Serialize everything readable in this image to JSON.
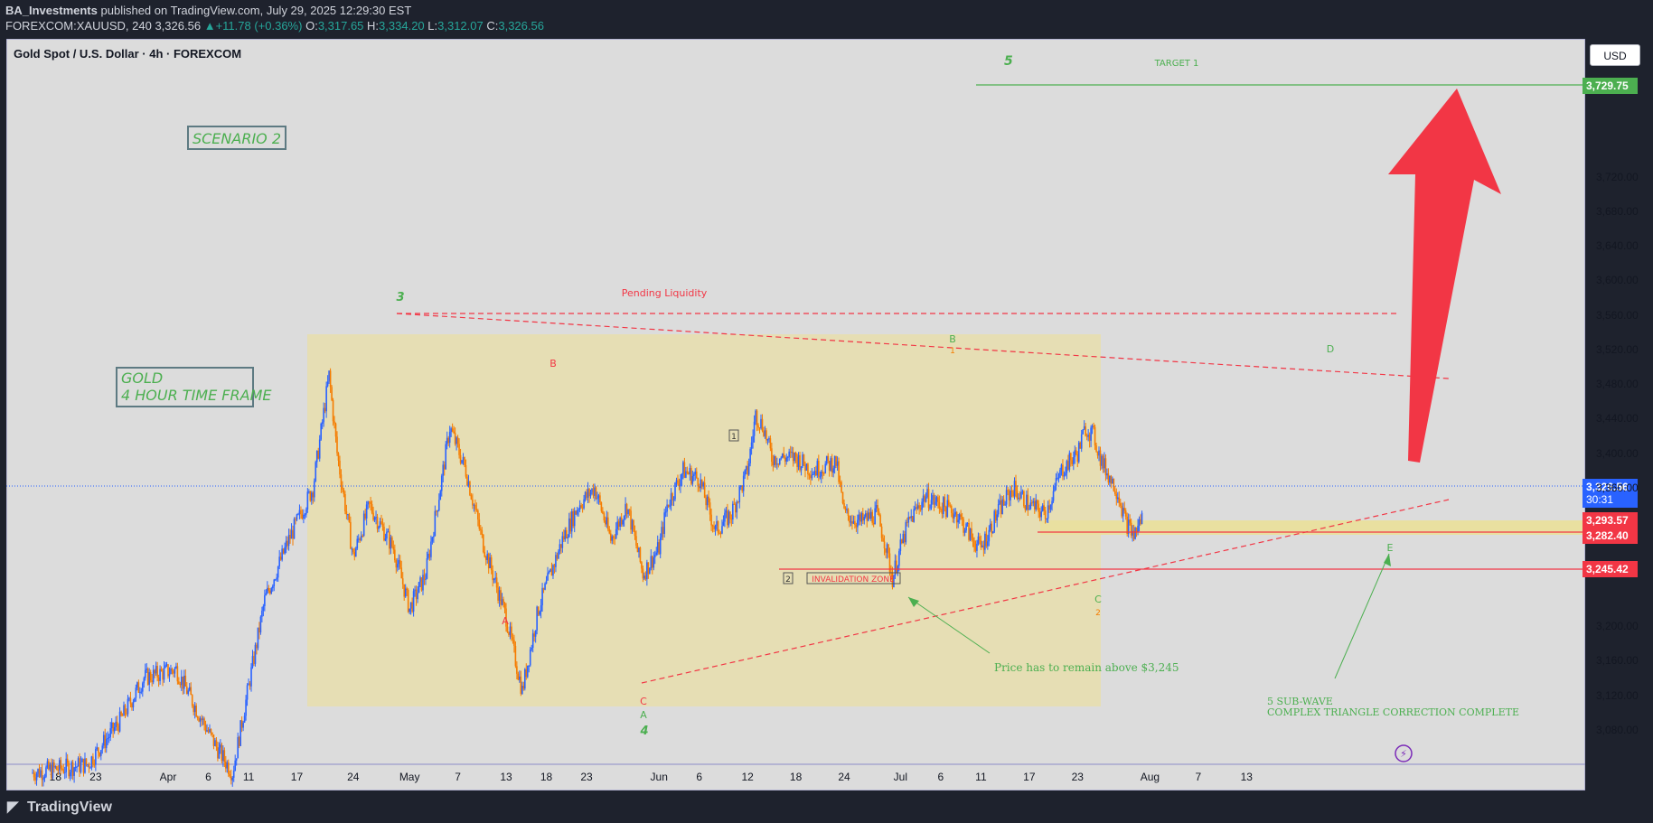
{
  "header": {
    "publisher": "BA_Investments",
    "published_text": "published on TradingView.com, July 29, 2025 12:29:30 EST",
    "symbol": "FOREXCOM:XAUUSD, 240",
    "last": "3,326.56",
    "change": "+11.78 (+0.36%)",
    "o_label": "O:",
    "o": "3,317.65",
    "h_label": "H:",
    "h": "3,334.20",
    "l_label": "L:",
    "l": "3,312.07",
    "c_label": "C:",
    "c": "3,326.56"
  },
  "chart_title": "Gold Spot / U.S. Dollar · 4h · FOREXCOM",
  "currency_button": "USD",
  "price_tags": {
    "target": "3,729.75",
    "current": "3,326.56",
    "countdown": "30:31",
    "level_a": "3,293.57",
    "level_b": "3,282.40",
    "level_c": "3,245.42"
  },
  "colors": {
    "bull": "#2962ff",
    "bear": "#f57c00",
    "green": "#4caf50",
    "red": "#f23645",
    "zone": "#e6deb4"
  },
  "annotations": {
    "scenario": "SCENARIO 2",
    "gold_line1": "GOLD",
    "gold_line2": "4 HOUR TIME FRAME",
    "target_wave": "5",
    "target_label": "TARGET 1",
    "pending_liquidity": "Pending Liquidity",
    "invalidation_zone": "INVALIDATION ZONE",
    "price_note": "Price has to remain above $3,245",
    "subwave_line1": "5 SUB-WAVE",
    "subwave_line2": "COMPLEX TRIANGLE CORRECTION COMPLETE",
    "wave_3": "3",
    "wave_4": "4",
    "wave_A_red": "A",
    "wave_B_red": "B",
    "wave_C_red": "C",
    "wave_A_green": "A",
    "wave_B_green": "B",
    "wave_C_green": "C",
    "wave_D": "D",
    "wave_E": "E",
    "box_1": "1",
    "box_2": "2",
    "small_1": "1",
    "small_2": "2"
  },
  "footer": {
    "logo": "TradingView"
  },
  "chart_data": {
    "type": "candlestick",
    "title": "Gold Spot / U.S. Dollar · 4h · FOREXCOM",
    "y_axis_ticks": [
      "3,720.00",
      "3,680.00",
      "3,640.00",
      "3,600.00",
      "3,560.00",
      "3,520.00",
      "3,480.00",
      "3,440.00",
      "3,400.00",
      "3,360.00",
      "3,200.00",
      "3,160.00",
      "3,120.00",
      "3,080.00"
    ],
    "y_tick_values": [
      3720,
      3680,
      3640,
      3600,
      3560,
      3520,
      3480,
      3440,
      3400,
      3360,
      3200,
      3160,
      3120,
      3080
    ],
    "x_axis_ticks": [
      {
        "label": "18",
        "day": -14
      },
      {
        "label": "23",
        "day": -9
      },
      {
        "label": "Apr",
        "day": 0
      },
      {
        "label": "6",
        "day": 5
      },
      {
        "label": "11",
        "day": 10
      },
      {
        "label": "17",
        "day": 16
      },
      {
        "label": "24",
        "day": 23
      },
      {
        "label": "May",
        "day": 30
      },
      {
        "label": "7",
        "day": 36
      },
      {
        "label": "13",
        "day": 42
      },
      {
        "label": "18",
        "day": 47
      },
      {
        "label": "23",
        "day": 52
      },
      {
        "label": "Jun",
        "day": 61
      },
      {
        "label": "6",
        "day": 66
      },
      {
        "label": "12",
        "day": 72
      },
      {
        "label": "18",
        "day": 78
      },
      {
        "label": "24",
        "day": 84
      },
      {
        "label": "Jul",
        "day": 91
      },
      {
        "label": "6",
        "day": 96
      },
      {
        "label": "11",
        "day": 101
      },
      {
        "label": "17",
        "day": 107
      },
      {
        "label": "23",
        "day": 113
      },
      {
        "label": "Aug",
        "day": 122
      },
      {
        "label": "7",
        "day": 128
      },
      {
        "label": "13",
        "day": 134
      }
    ],
    "price_path": [
      {
        "day": -17,
        "price": 3030
      },
      {
        "day": -10,
        "price": 3040
      },
      {
        "day": -6,
        "price": 3090
      },
      {
        "day": -3,
        "price": 3140
      },
      {
        "day": 1,
        "price": 3150
      },
      {
        "day": 4,
        "price": 3095
      },
      {
        "day": 6,
        "price": 3060
      },
      {
        "day": 8,
        "price": 3030
      },
      {
        "day": 10,
        "price": 3130
      },
      {
        "day": 12,
        "price": 3230
      },
      {
        "day": 15,
        "price": 3300
      },
      {
        "day": 18,
        "price": 3360
      },
      {
        "day": 20,
        "price": 3490
      },
      {
        "day": 21,
        "price": 3400
      },
      {
        "day": 23,
        "price": 3280
      },
      {
        "day": 25,
        "price": 3340
      },
      {
        "day": 28,
        "price": 3290
      },
      {
        "day": 30,
        "price": 3220
      },
      {
        "day": 32,
        "price": 3260
      },
      {
        "day": 34,
        "price": 3370
      },
      {
        "day": 35,
        "price": 3430
      },
      {
        "day": 37,
        "price": 3380
      },
      {
        "day": 39,
        "price": 3300
      },
      {
        "day": 41,
        "price": 3240
      },
      {
        "day": 42,
        "price": 3210
      },
      {
        "day": 44,
        "price": 3125
      },
      {
        "day": 46,
        "price": 3220
      },
      {
        "day": 49,
        "price": 3300
      },
      {
        "day": 51,
        "price": 3340
      },
      {
        "day": 53,
        "price": 3360
      },
      {
        "day": 55,
        "price": 3300
      },
      {
        "day": 57,
        "price": 3340
      },
      {
        "day": 59,
        "price": 3260
      },
      {
        "day": 61,
        "price": 3290
      },
      {
        "day": 62,
        "price": 3340
      },
      {
        "day": 64,
        "price": 3380
      },
      {
        "day": 66,
        "price": 3370
      },
      {
        "day": 68,
        "price": 3310
      },
      {
        "day": 70,
        "price": 3330
      },
      {
        "day": 72,
        "price": 3380
      },
      {
        "day": 73,
        "price": 3445
      },
      {
        "day": 74,
        "price": 3430
      },
      {
        "day": 75,
        "price": 3395
      },
      {
        "day": 78,
        "price": 3395
      },
      {
        "day": 80,
        "price": 3380
      },
      {
        "day": 83,
        "price": 3390
      },
      {
        "day": 84,
        "price": 3330
      },
      {
        "day": 86,
        "price": 3320
      },
      {
        "day": 88,
        "price": 3330
      },
      {
        "day": 89,
        "price": 3300
      },
      {
        "day": 90,
        "price": 3255
      },
      {
        "day": 91,
        "price": 3290
      },
      {
        "day": 92,
        "price": 3320
      },
      {
        "day": 94,
        "price": 3350
      },
      {
        "day": 96,
        "price": 3340
      },
      {
        "day": 98,
        "price": 3330
      },
      {
        "day": 100,
        "price": 3300
      },
      {
        "day": 101,
        "price": 3290
      },
      {
        "day": 103,
        "price": 3330
      },
      {
        "day": 105,
        "price": 3360
      },
      {
        "day": 107,
        "price": 3340
      },
      {
        "day": 109,
        "price": 3330
      },
      {
        "day": 111,
        "price": 3380
      },
      {
        "day": 113,
        "price": 3400
      },
      {
        "day": 114,
        "price": 3430
      },
      {
        "day": 115,
        "price": 3420
      },
      {
        "day": 116,
        "price": 3390
      },
      {
        "day": 118,
        "price": 3355
      },
      {
        "day": 119,
        "price": 3320
      },
      {
        "day": 120,
        "price": 3305
      },
      {
        "day": 121,
        "price": 3326
      }
    ]
  }
}
